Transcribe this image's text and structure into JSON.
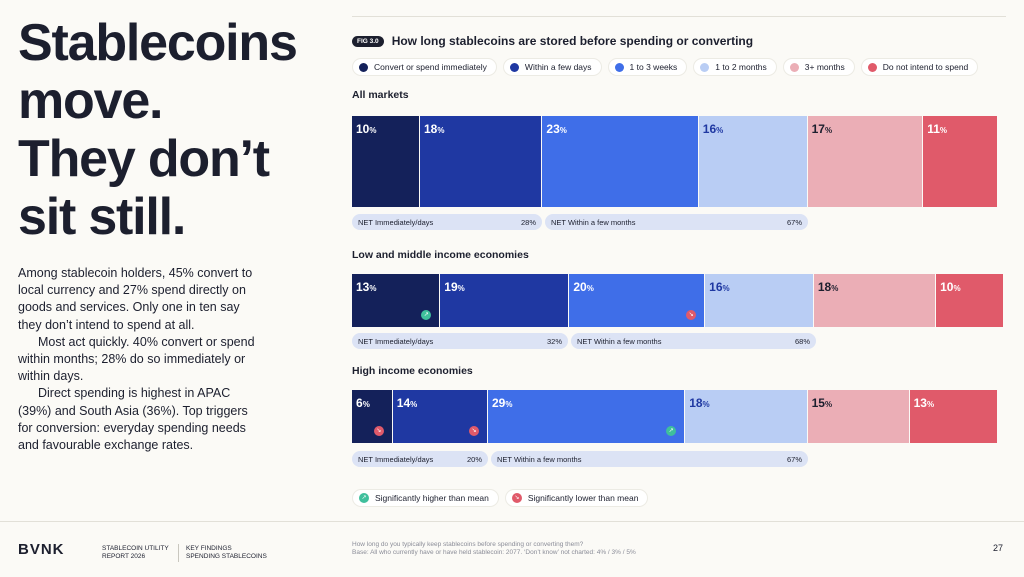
{
  "headline": [
    "Stablecoins",
    "move.",
    "They don’t",
    "sit still."
  ],
  "body_paragraphs": [
    "Among stablecoin holders, 45% convert to local currency and 27% spend directly on goods and services. Only one in ten say they don’t intend to spend at all.",
    "Most act quickly. 40% convert or spend within months; 28% do so immediately or within days.",
    "Direct spending is highest in APAC (39%) and South Asia (36%). Top triggers for conversion: everyday spending needs and favourable exchange rates."
  ],
  "figure": {
    "badge": "FIG 3.0",
    "title": "How long stablecoins are stored before spending or converting"
  },
  "legend": [
    {
      "label": "Convert or spend immediately",
      "color": "#14215a"
    },
    {
      "label": "Within a few days",
      "color": "#1f38a2"
    },
    {
      "label": "1 to 3 weeks",
      "color": "#3f6ee8"
    },
    {
      "label": "1 to 2 months",
      "color": "#b9cdf4"
    },
    {
      "label": "3+ months",
      "color": "#ebaeb6"
    },
    {
      "label": "Do not intend to spend",
      "color": "#e05a6a"
    }
  ],
  "chart_data": {
    "type": "bar",
    "stacked": "100%",
    "orientation": "horizontal",
    "title": "How long stablecoins are stored before spending or converting",
    "series_names": [
      "Convert or spend immediately",
      "Within a few days",
      "1 to 3 weeks",
      "1 to 2 months",
      "3+ months",
      "Do not intend to spend"
    ],
    "groups": [
      {
        "name": "All markets",
        "values": [
          10,
          18,
          23,
          16,
          17,
          11
        ],
        "significance": [
          null,
          null,
          null,
          null,
          null,
          null
        ],
        "net": [
          {
            "label": "NET Immediately/days",
            "value": "28%"
          },
          {
            "label": "NET Within a few months",
            "value": "67%"
          }
        ]
      },
      {
        "name": "Low and middle income economies",
        "values": [
          13,
          19,
          20,
          16,
          18,
          10
        ],
        "significance": [
          "higher",
          null,
          "lower",
          null,
          null,
          null
        ],
        "net": [
          {
            "label": "NET Immediately/days",
            "value": "32%"
          },
          {
            "label": "NET Within a few months",
            "value": "68%"
          }
        ]
      },
      {
        "name": "High income economies",
        "values": [
          6,
          14,
          29,
          18,
          15,
          13
        ],
        "significance": [
          "lower",
          "lower",
          "higher",
          null,
          null,
          null
        ],
        "net": [
          {
            "label": "NET Immediately/days",
            "value": "20%"
          },
          {
            "label": "NET Within a few months",
            "value": "67%"
          }
        ]
      }
    ],
    "pct_suffix": "%"
  },
  "significance_legend": [
    {
      "kind": "higher",
      "label": "Significantly higher than mean",
      "icon": "arrow-up-right-icon"
    },
    {
      "kind": "lower",
      "label": "Significantly lower than mean",
      "icon": "arrow-down-right-icon"
    }
  ],
  "footer": {
    "logo": "BVNK",
    "report": [
      "STABLECOIN UTILITY",
      "REPORT 2026"
    ],
    "section": [
      "KEY FINDINGS",
      "SPENDING STABLECOINS"
    ],
    "question": "How long do you typically keep stablecoins before spending or converting them?",
    "base": "Base: All who currently have or have held stablecoin: 2077. ‘Don’t know’ not charted: 4% / 3% / 5%",
    "page": "27"
  }
}
